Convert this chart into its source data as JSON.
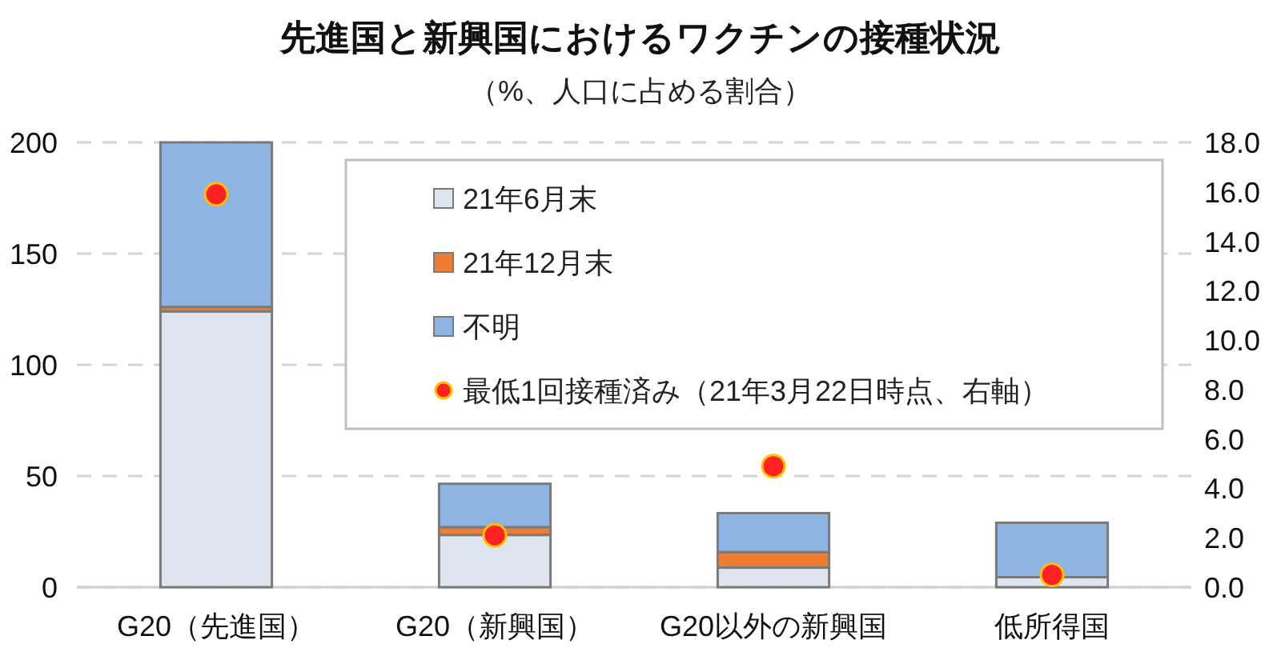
{
  "chart_data": {
    "type": "bar",
    "title": "先進国と新興国におけるワクチンの接種状況",
    "subtitle": "（%、人口に占める割合）",
    "categories": [
      "G20（先進国）",
      "G20（新興国）",
      "G20以外の新興国",
      "低所得国"
    ],
    "stacked": true,
    "series": [
      {
        "name": "21年6月末",
        "color": "#dfe5ee",
        "values": [
          124,
          23.5,
          8.8,
          4.5
        ]
      },
      {
        "name": "21年12月末",
        "color": "#ed7d31",
        "values": [
          2,
          3.5,
          7,
          0
        ]
      },
      {
        "name": "不明",
        "color": "#8eb4e3",
        "values": [
          74,
          19.5,
          17.5,
          24.5
        ]
      },
      {
        "name": "最低1回接種済み（21年3月22日時点、右軸）",
        "type": "scatter",
        "axis": "y2",
        "color": "#ff2222",
        "x": [
          "G20（先進国）",
          "G20（新興国）",
          "G20以外の新興国",
          "低所得国"
        ],
        "values": [
          15.9,
          2.1,
          4.9,
          0.5
        ]
      }
    ],
    "ylim": [
      0,
      200
    ],
    "yticks": [
      0,
      50,
      100,
      150,
      200
    ],
    "y2lim": [
      0,
      18
    ],
    "y2ticks": [
      {
        "value": 0,
        "label": "0.0"
      },
      {
        "value": 2,
        "label": "2.0"
      },
      {
        "value": 4,
        "label": "4.0"
      },
      {
        "value": 6,
        "label": "6.0"
      },
      {
        "value": 8,
        "label": "8.0"
      },
      {
        "value": 10,
        "label": "10.0"
      },
      {
        "value": 12,
        "label": "12.0"
      },
      {
        "value": 14,
        "label": "14.0"
      },
      {
        "value": 16,
        "label": "16.0"
      },
      {
        "value": 18,
        "label": "18.0"
      }
    ],
    "grid": "y",
    "legend": "top right",
    "marker": "circle"
  }
}
